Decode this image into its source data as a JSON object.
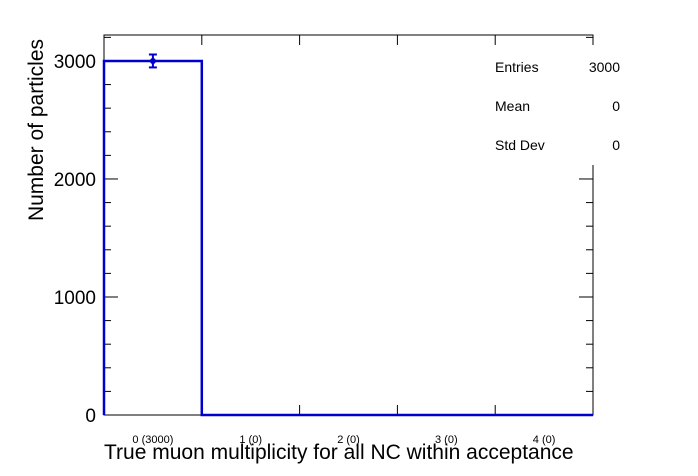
{
  "chart_data": {
    "type": "bar",
    "title": "",
    "xlabel": "True muon multiplicity for all NC within acceptance",
    "ylabel": "Number of particles",
    "categories": [
      "0 (3000)",
      "1 (0)",
      "2 (0)",
      "3 (0)",
      "4 (0)"
    ],
    "values": [
      3000,
      0,
      0,
      0,
      0
    ],
    "errors": [
      54.8,
      0,
      0,
      0,
      0
    ],
    "ylim": [
      0,
      3220
    ],
    "yticks": [
      0,
      1000,
      2000,
      3000
    ],
    "ytick_labels": [
      "0",
      "1000",
      "2000",
      "3000"
    ],
    "grid": false,
    "legend": "none",
    "colors": {
      "line": "#0000cc",
      "axis": "#000000"
    }
  },
  "stats": {
    "rows": [
      {
        "label": "Entries",
        "value": "3000"
      },
      {
        "label": "Mean",
        "value": "0"
      },
      {
        "label": "Std Dev",
        "value": "0"
      }
    ]
  }
}
